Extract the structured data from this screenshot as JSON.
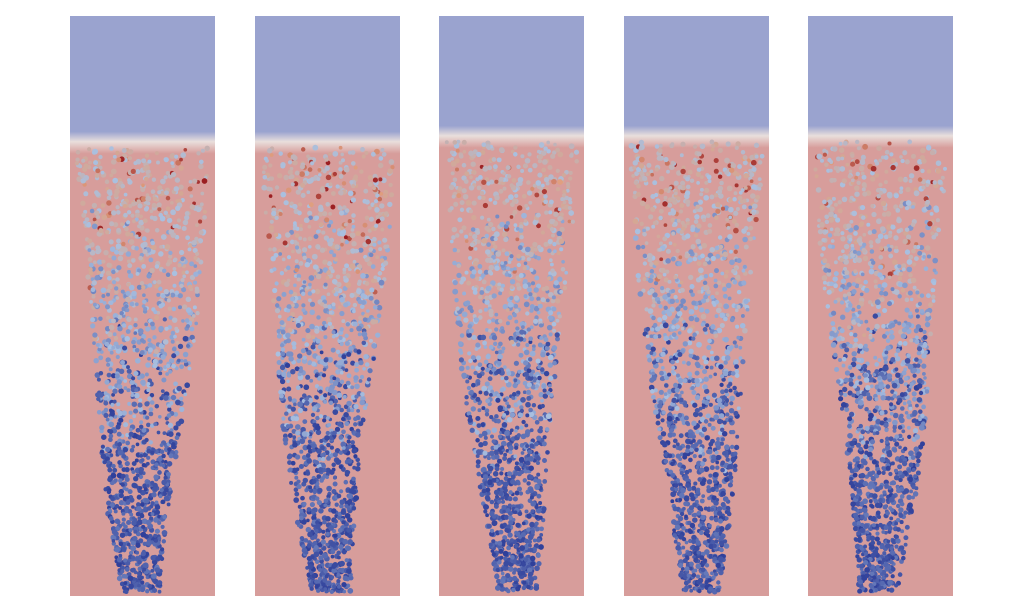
{
  "figure": {
    "panel_count": 5,
    "colors": {
      "background": "#ffffff",
      "gas_phase": "#9aa3cf",
      "interface": "#e9dfdc",
      "liquid_phase": "#d79d9b",
      "particle_cold": "#2f3f9a",
      "particle_mid": "#a9c0e0",
      "particle_warm": "#e0a080",
      "particle_hot": "#9a1c20"
    },
    "panels": [
      {
        "id": "panel-1",
        "interface_level": 0.78,
        "hot_particle_fraction": 0.05
      },
      {
        "id": "panel-2",
        "interface_level": 0.78,
        "hot_particle_fraction": 0.08
      },
      {
        "id": "panel-3",
        "interface_level": 0.79,
        "hot_particle_fraction": 0.04
      },
      {
        "id": "panel-4",
        "interface_level": 0.79,
        "hot_particle_fraction": 0.07
      },
      {
        "id": "panel-5",
        "interface_level": 0.79,
        "hot_particle_fraction": 0.05
      }
    ]
  }
}
